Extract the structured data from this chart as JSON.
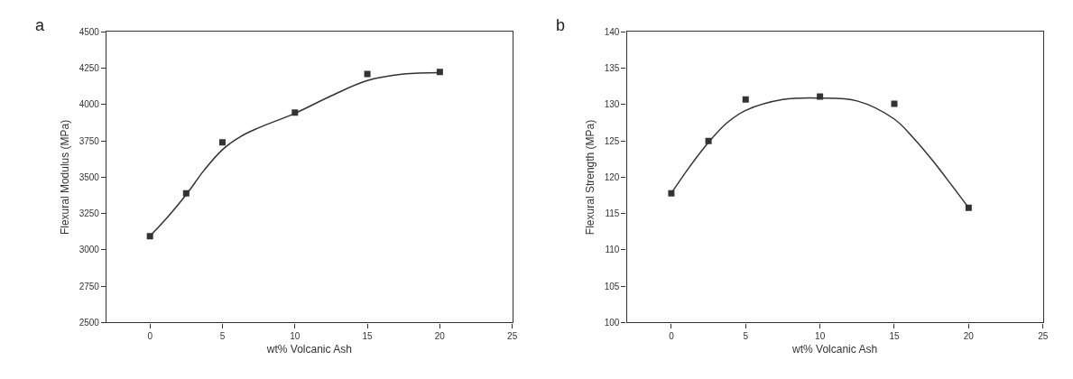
{
  "chart_data": [
    {
      "type": "scatter",
      "title": "a",
      "xlabel": "wt% Volcanic Ash",
      "ylabel": "Flexural Modulus (MPa)",
      "xlim": [
        -3,
        25
      ],
      "xticks": [
        0,
        5,
        10,
        15,
        20,
        25
      ],
      "ylim": [
        2500,
        4500
      ],
      "yticks": [
        2500,
        2750,
        3000,
        3250,
        3500,
        3750,
        4000,
        4250,
        4500
      ],
      "series": [
        {
          "marker": "square",
          "color": "#333333",
          "x": [
            0,
            2.5,
            5,
            10,
            15,
            20
          ],
          "values": [
            3095,
            3390,
            3740,
            3945,
            4210,
            4225
          ]
        },
        {
          "type": "line",
          "marker": "none",
          "line_style": "solid",
          "color": "#333333",
          "x": [
            0,
            1.25,
            2.5,
            3.75,
            5,
            6.25,
            7.5,
            10,
            12.5,
            15,
            17.5,
            20
          ],
          "values": [
            3095,
            3230,
            3380,
            3550,
            3690,
            3780,
            3840,
            3940,
            4060,
            4165,
            4210,
            4220
          ]
        }
      ]
    },
    {
      "type": "scatter",
      "title": "b",
      "xlabel": "wt% Volcanic Ash",
      "ylabel": "Flexural Strength (MPa)",
      "xlim": [
        -3,
        25
      ],
      "xticks": [
        0,
        5,
        10,
        15,
        20,
        25
      ],
      "ylim": [
        100,
        140
      ],
      "yticks": [
        100,
        105,
        110,
        115,
        120,
        125,
        130,
        135,
        140
      ],
      "series": [
        {
          "marker": "square",
          "color": "#333333",
          "x": [
            0,
            2.5,
            5,
            10,
            15,
            20
          ],
          "values": [
            117.8,
            125,
            130.7,
            131.1,
            130.1,
            115.8
          ]
        },
        {
          "type": "line",
          "marker": "none",
          "line_style": "solid",
          "color": "#333333",
          "x": [
            0,
            1.25,
            2.5,
            3.75,
            5,
            7.5,
            10,
            12.5,
            15,
            16.25,
            17.5,
            18.75,
            20
          ],
          "values": [
            117.8,
            121.5,
            124.8,
            127.5,
            129.2,
            130.7,
            130.9,
            130.5,
            128,
            125.5,
            122.5,
            119.2,
            115.8
          ]
        }
      ]
    }
  ]
}
